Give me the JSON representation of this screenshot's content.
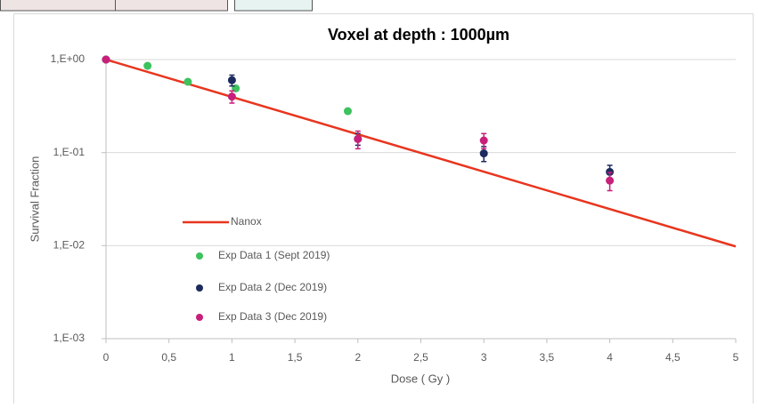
{
  "chart_data": {
    "type": "scatter",
    "title": "Voxel at depth : 1000µm",
    "x_label": "Dose ( Gy )",
    "y_label": "Survival Fraction",
    "xlim": [
      0,
      5
    ],
    "xticks": [
      0,
      {
        "value": 0.5,
        "label": "0,5"
      },
      1,
      {
        "value": 1.5,
        "label": "1,5"
      },
      2,
      {
        "value": 2.5,
        "label": "2,5"
      },
      3,
      {
        "value": 3.5,
        "label": "3,5"
      },
      4,
      {
        "value": 4.5,
        "label": "4,5"
      },
      5
    ],
    "ylim": [
      0.001,
      1
    ],
    "yticks": [
      {
        "value": 1,
        "label": "1,E+00"
      },
      {
        "value": 0.1,
        "label": "1,E-01"
      },
      {
        "value": 0.01,
        "label": "1,E-02"
      },
      {
        "value": 0.001,
        "label": "1,E-03"
      }
    ],
    "y_scale": "log",
    "grid": true,
    "legend": "lower left",
    "series": [
      {
        "name": "Nanox",
        "style": "line",
        "color": "#e8351e",
        "x": [
          0,
          5
        ],
        "values": [
          1,
          0.0098
        ]
      },
      {
        "name": "Exp Data 1 (Sept 2019)",
        "style": "marker",
        "color": "#3cc25e",
        "x": [
          0,
          0.33,
          0.65,
          1.03,
          1.92
        ],
        "values": [
          1,
          0.857,
          0.577,
          0.49,
          0.279
        ]
      },
      {
        "name": "Exp Data 2 (Dec 2019)",
        "style": "marker",
        "color": "#1c2a5e",
        "x": [
          0,
          1,
          2,
          3,
          4
        ],
        "values": [
          1,
          0.6,
          0.14,
          0.098,
          0.062
        ],
        "errors": [
          null,
          0.08,
          0.02,
          0.018,
          0.011
        ]
      },
      {
        "name": "Exp Data 3 (Dec 2019)",
        "style": "marker",
        "color": "#c81f7a",
        "x": [
          0,
          1,
          2,
          3,
          4
        ],
        "values": [
          1,
          0.4,
          0.14,
          0.135,
          0.05
        ],
        "errors": [
          null,
          0.06,
          0.03,
          0.025,
          0.011
        ]
      }
    ]
  }
}
